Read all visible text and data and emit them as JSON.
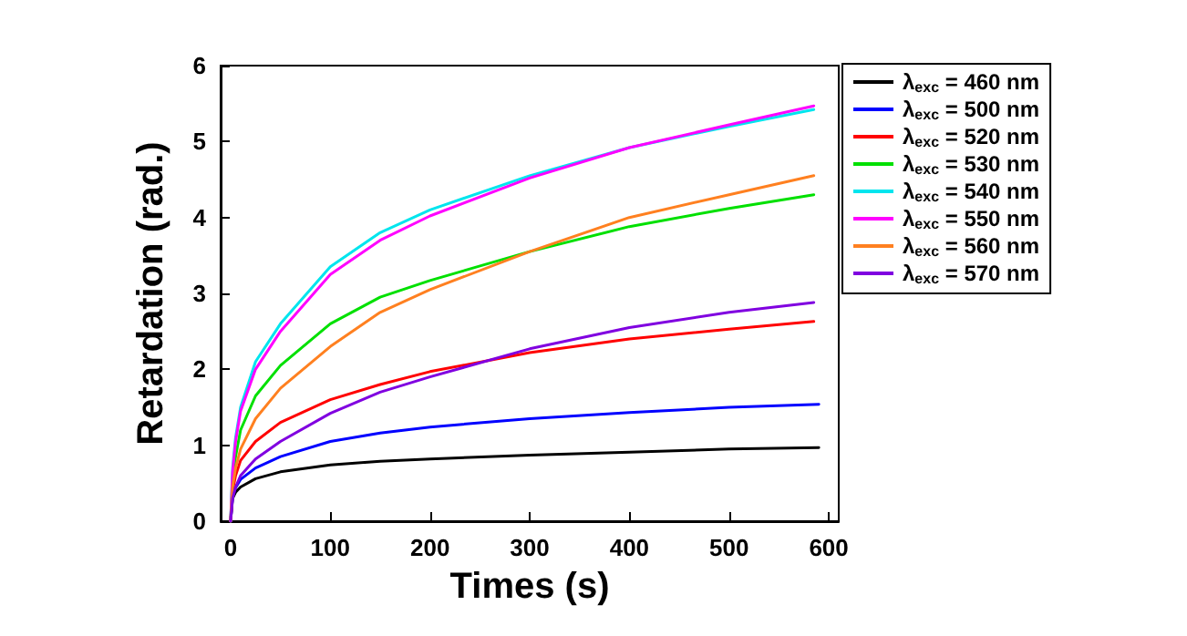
{
  "chart_data": {
    "type": "line",
    "xlabel": "Times (s)",
    "ylabel": "Retardation (rad.)",
    "xlim": [
      -10,
      610
    ],
    "xticks": [
      0,
      100,
      200,
      300,
      400,
      500,
      600
    ],
    "ylim": [
      0,
      6
    ],
    "yticks": [
      0,
      1,
      2,
      3,
      4,
      5,
      6
    ],
    "grid": false,
    "legend": "right",
    "marker": "none",
    "line_style": "solid",
    "series": [
      {
        "name": "λ$_{exc}$ = 460 nm",
        "color": "#000000",
        "x": [
          0,
          2,
          5,
          10,
          25,
          50,
          100,
          150,
          200,
          300,
          400,
          500,
          590
        ],
        "values": [
          0,
          0.3,
          0.38,
          0.45,
          0.56,
          0.65,
          0.74,
          0.79,
          0.82,
          0.87,
          0.91,
          0.95,
          0.97
        ]
      },
      {
        "name": "λ$_{exc}$ = 500 nm",
        "color": "#0000ff",
        "x": [
          0,
          2,
          5,
          10,
          25,
          50,
          100,
          150,
          200,
          300,
          400,
          500,
          590
        ],
        "values": [
          0,
          0.32,
          0.44,
          0.55,
          0.7,
          0.85,
          1.05,
          1.16,
          1.24,
          1.35,
          1.43,
          1.5,
          1.54
        ]
      },
      {
        "name": "λ$_{exc}$ = 520 nm",
        "color": "#ff0000",
        "x": [
          0,
          2,
          5,
          10,
          25,
          50,
          100,
          150,
          200,
          300,
          400,
          500,
          585
        ],
        "values": [
          0,
          0.4,
          0.6,
          0.8,
          1.05,
          1.3,
          1.6,
          1.8,
          1.97,
          2.22,
          2.4,
          2.53,
          2.63
        ]
      },
      {
        "name": "λ$_{exc}$ = 530 nm",
        "color": "#00e000",
        "x": [
          0,
          2,
          5,
          10,
          25,
          50,
          100,
          150,
          200,
          300,
          400,
          500,
          585
        ],
        "values": [
          0,
          0.55,
          0.85,
          1.2,
          1.65,
          2.05,
          2.6,
          2.95,
          3.17,
          3.55,
          3.88,
          4.12,
          4.3
        ]
      },
      {
        "name": "λ$_{exc}$ = 540 nm",
        "color": "#00e5ee",
        "x": [
          0,
          2,
          5,
          10,
          25,
          50,
          100,
          150,
          200,
          300,
          400,
          500,
          585
        ],
        "values": [
          0,
          0.7,
          1.1,
          1.5,
          2.1,
          2.6,
          3.35,
          3.8,
          4.1,
          4.55,
          4.92,
          5.2,
          5.42
        ]
      },
      {
        "name": "λ$_{exc}$ = 550 nm",
        "color": "#ff00ff",
        "x": [
          0,
          2,
          5,
          10,
          25,
          50,
          100,
          150,
          200,
          300,
          400,
          500,
          585
        ],
        "values": [
          0,
          0.65,
          1.05,
          1.45,
          2.0,
          2.5,
          3.25,
          3.7,
          4.02,
          4.52,
          4.92,
          5.22,
          5.47
        ]
      },
      {
        "name": "λ$_{exc}$ = 560 nm",
        "color": "#ff8020",
        "x": [
          0,
          2,
          5,
          10,
          25,
          50,
          100,
          150,
          200,
          300,
          400,
          500,
          585
        ],
        "values": [
          0,
          0.45,
          0.7,
          0.95,
          1.35,
          1.75,
          2.3,
          2.75,
          3.05,
          3.55,
          4.0,
          4.3,
          4.55
        ]
      },
      {
        "name": "λ$_{exc}$ = 570 nm",
        "color": "#8000e0",
        "x": [
          0,
          2,
          5,
          10,
          25,
          50,
          100,
          150,
          200,
          300,
          400,
          500,
          585
        ],
        "values": [
          0,
          0.3,
          0.45,
          0.6,
          0.82,
          1.05,
          1.42,
          1.7,
          1.9,
          2.27,
          2.55,
          2.75,
          2.88
        ]
      }
    ]
  }
}
